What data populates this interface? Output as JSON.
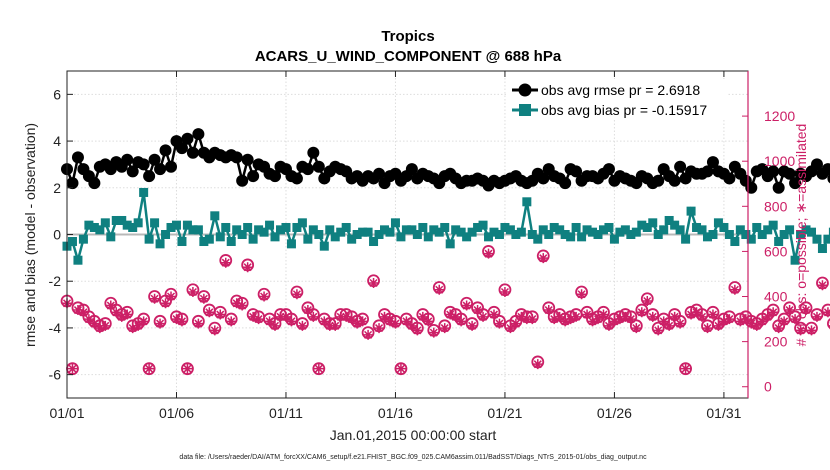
{
  "chart_data": {
    "type": "line",
    "title": "Tropics",
    "subtitle": "ACARS_U_WIND_COMPONENT @ 688 hPa",
    "xlabel": "Jan.01,2015 00:00:00 start",
    "ylabel_left": "rmse and bias (model - observation)",
    "ylabel_right": "# of obs: o=possible; ∗=assimilated",
    "footer": "data file: /Users/raeder/DAI/ATM_forcXX/CAM6_setup/f.e21.FHIST_BGC.f09_025.CAM6assim.011/BadSST/Diags_NTrS_2015-01/obs_diag_output.nc",
    "xlim": [
      1,
      32.1
    ],
    "ylim_left": [
      -7,
      7
    ],
    "ylim_right": [
      -50,
      1400
    ],
    "x_ticks": [
      1,
      6,
      11,
      16,
      21,
      26,
      31
    ],
    "x_tick_labels": [
      "01/01",
      "01/06",
      "01/11",
      "01/16",
      "01/21",
      "01/26",
      "01/31"
    ],
    "y_ticks_left": [
      -6,
      -4,
      -2,
      0,
      2,
      4,
      6
    ],
    "y_ticks_right": [
      0,
      200,
      400,
      600,
      800,
      1000,
      1200
    ],
    "series": [
      {
        "name": "obs avg rmse pr = 2.6918",
        "axis": "left",
        "color": "#000000",
        "marker": "circle",
        "values": [
          2.8,
          2.2,
          3.3,
          2.8,
          2.5,
          2.2,
          2.9,
          3.0,
          2.8,
          3.1,
          2.9,
          3.2,
          2.7,
          3.1,
          3.0,
          2.5,
          3.2,
          2.8,
          3.6,
          2.9,
          4.0,
          3.7,
          4.1,
          3.5,
          4.3,
          3.5,
          3.3,
          3.5,
          3.4,
          3.3,
          3.4,
          3.3,
          2.3,
          3.2,
          2.5,
          3.0,
          2.9,
          2.6,
          2.5,
          2.9,
          2.8,
          2.5,
          2.4,
          2.9,
          2.8,
          3.5,
          2.9,
          2.4,
          2.7,
          2.9,
          2.8,
          2.7,
          2.4,
          2.5,
          2.3,
          2.5,
          2.4,
          2.6,
          2.2,
          2.5,
          2.6,
          2.3,
          2.5,
          2.8,
          2.4,
          2.6,
          2.5,
          2.4,
          2.2,
          2.5,
          2.6,
          2.4,
          2.2,
          2.3,
          2.3,
          2.4,
          2.3,
          2.1,
          2.3,
          2.2,
          2.3,
          2.4,
          2.5,
          2.3,
          2.2,
          2.3,
          2.6,
          2.4,
          2.8,
          2.5,
          2.4,
          2.2,
          2.8,
          2.7,
          2.3,
          2.5,
          2.5,
          2.4,
          2.6,
          2.8,
          2.3,
          2.5,
          2.4,
          2.3,
          2.2,
          2.5,
          2.4,
          2.2,
          2.3,
          2.8,
          2.5,
          2.3,
          2.9,
          2.4,
          2.7,
          2.6,
          2.6,
          2.7,
          3.1,
          2.7,
          2.6,
          2.4,
          2.9,
          2.6,
          2.3,
          2.0,
          2.7,
          2.8,
          2.5,
          2.7,
          2.0,
          2.7,
          2.6,
          2.2,
          2.6,
          2.5,
          2.7,
          3.0,
          2.6,
          2.8,
          2.4,
          2.3,
          2.6,
          2.7,
          2.5,
          2.6,
          3.5,
          2.9,
          2.6,
          2.7,
          2.3,
          2.5,
          2.5
        ]
      },
      {
        "name": "obs avg bias pr = -0.15917",
        "axis": "left",
        "color": "#0f8080",
        "marker": "square",
        "values": [
          -0.5,
          -0.3,
          -1.1,
          -0.2,
          0.4,
          0.3,
          0.2,
          0.5,
          -0.1,
          0.6,
          0.6,
          0.4,
          0.3,
          0.5,
          1.8,
          -0.2,
          0.5,
          -0.4,
          0.0,
          0.3,
          0.4,
          -0.3,
          0.4,
          0.2,
          0.2,
          -0.3,
          -0.2,
          0.8,
          -0.1,
          0.3,
          -0.3,
          0.2,
          0.0,
          0.3,
          -0.2,
          0.2,
          0.1,
          0.4,
          -0.1,
          0.2,
          0.3,
          -0.4,
          0.3,
          0.5,
          -0.2,
          0.2,
          0.0,
          -0.5,
          0.2,
          -0.1,
          0.1,
          0.3,
          -0.2,
          0.0,
          0.1,
          0.1,
          -0.3,
          0.0,
          0.2,
          0.1,
          0.5,
          -0.1,
          0.2,
          0.2,
          0.0,
          0.3,
          -0.1,
          0.2,
          0.1,
          0.3,
          -0.4,
          0.2,
          0.1,
          -0.1,
          0.1,
          0.3,
          0.4,
          -0.1,
          0.1,
          0.0,
          0.3,
          0.2,
          0.0,
          0.1,
          1.4,
          0.0,
          -0.2,
          0.2,
          0.0,
          0.3,
          0.2,
          0.0,
          -0.1,
          0.3,
          -0.1,
          0.2,
          0.1,
          0.0,
          0.2,
          0.3,
          -0.2,
          0.1,
          0.2,
          0.0,
          0.1,
          0.4,
          0.3,
          0.5,
          0.0,
          0.2,
          0.6,
          0.4,
          0.2,
          -0.2,
          1.0,
          0.3,
          0.2,
          -0.1,
          0.0,
          0.5,
          0.3,
          0.0,
          -0.3,
          0.2,
          0.0,
          -0.2,
          0.3,
          0.0,
          0.2,
          0.4,
          -0.3,
          0.0,
          0.2,
          -1.1,
          0.0,
          0.2,
          0.1,
          -0.2,
          -0.6,
          -0.2,
          0.1,
          0.2,
          -1.3,
          0.3,
          -0.4,
          -0.1,
          -0.9,
          -0.2,
          0.1,
          0.3,
          -0.3,
          0.2,
          0.5
        ]
      }
    ],
    "obs_counts": {
      "axis": "right",
      "color": "#cc1f66",
      "x_start": 1,
      "x_step": 0.25,
      "possible": [
        380,
        80,
        350,
        340,
        310,
        290,
        270,
        280,
        370,
        340,
        320,
        330,
        270,
        280,
        300,
        80,
        400,
        290,
        380,
        410,
        310,
        300,
        80,
        430,
        290,
        400,
        340,
        260,
        330,
        560,
        300,
        380,
        370,
        540,
        320,
        310,
        410,
        300,
        280,
        320,
        320,
        300,
        420,
        280,
        350,
        320,
        80,
        300,
        280,
        280,
        320,
        320,
        310,
        290,
        300,
        240,
        470,
        270,
        320,
        300,
        290,
        80,
        300,
        280,
        260,
        320,
        300,
        250,
        440,
        270,
        330,
        320,
        300,
        370,
        280,
        350,
        320,
        600,
        330,
        290,
        430,
        270,
        290,
        320,
        310,
        310,
        110,
        580,
        350,
        310,
        320,
        300,
        310,
        320,
        420,
        330,
        300,
        310,
        330,
        280,
        300,
        310,
        320,
        310,
        270,
        340,
        390,
        320,
        260,
        300,
        280,
        320,
        290,
        80,
        330,
        340,
        320,
        270,
        330,
        280,
        300,
        310,
        440,
        300,
        310,
        290,
        280,
        300,
        320,
        340,
        270,
        300,
        350,
        310,
        260,
        350,
        260,
        320,
        460,
        340,
        280,
        340,
        350,
        290,
        310,
        290,
        340,
        310,
        270,
        250,
        580,
        60,
        0
      ],
      "assimilated": [
        370,
        80,
        340,
        330,
        300,
        280,
        260,
        270,
        360,
        330,
        310,
        320,
        260,
        270,
        290,
        80,
        390,
        280,
        370,
        400,
        300,
        290,
        80,
        420,
        280,
        390,
        330,
        250,
        320,
        550,
        290,
        370,
        360,
        530,
        310,
        300,
        400,
        290,
        270,
        310,
        310,
        290,
        410,
        270,
        340,
        310,
        80,
        290,
        270,
        270,
        310,
        310,
        300,
        280,
        290,
        230,
        460,
        260,
        310,
        290,
        280,
        80,
        290,
        270,
        250,
        310,
        290,
        240,
        430,
        260,
        320,
        310,
        290,
        360,
        270,
        340,
        310,
        590,
        320,
        280,
        420,
        260,
        280,
        310,
        300,
        300,
        100,
        570,
        340,
        300,
        310,
        290,
        300,
        310,
        410,
        320,
        290,
        300,
        320,
        270,
        290,
        300,
        310,
        300,
        260,
        330,
        380,
        310,
        250,
        290,
        270,
        310,
        280,
        80,
        320,
        330,
        310,
        260,
        320,
        270,
        290,
        300,
        430,
        290,
        300,
        280,
        270,
        290,
        310,
        330,
        260,
        290,
        340,
        300,
        250,
        340,
        250,
        310,
        450,
        330,
        270,
        330,
        340,
        280,
        300,
        280,
        330,
        300,
        260,
        240,
        570,
        60,
        0
      ]
    },
    "zero_line": 0,
    "legend_position": "top-right"
  }
}
